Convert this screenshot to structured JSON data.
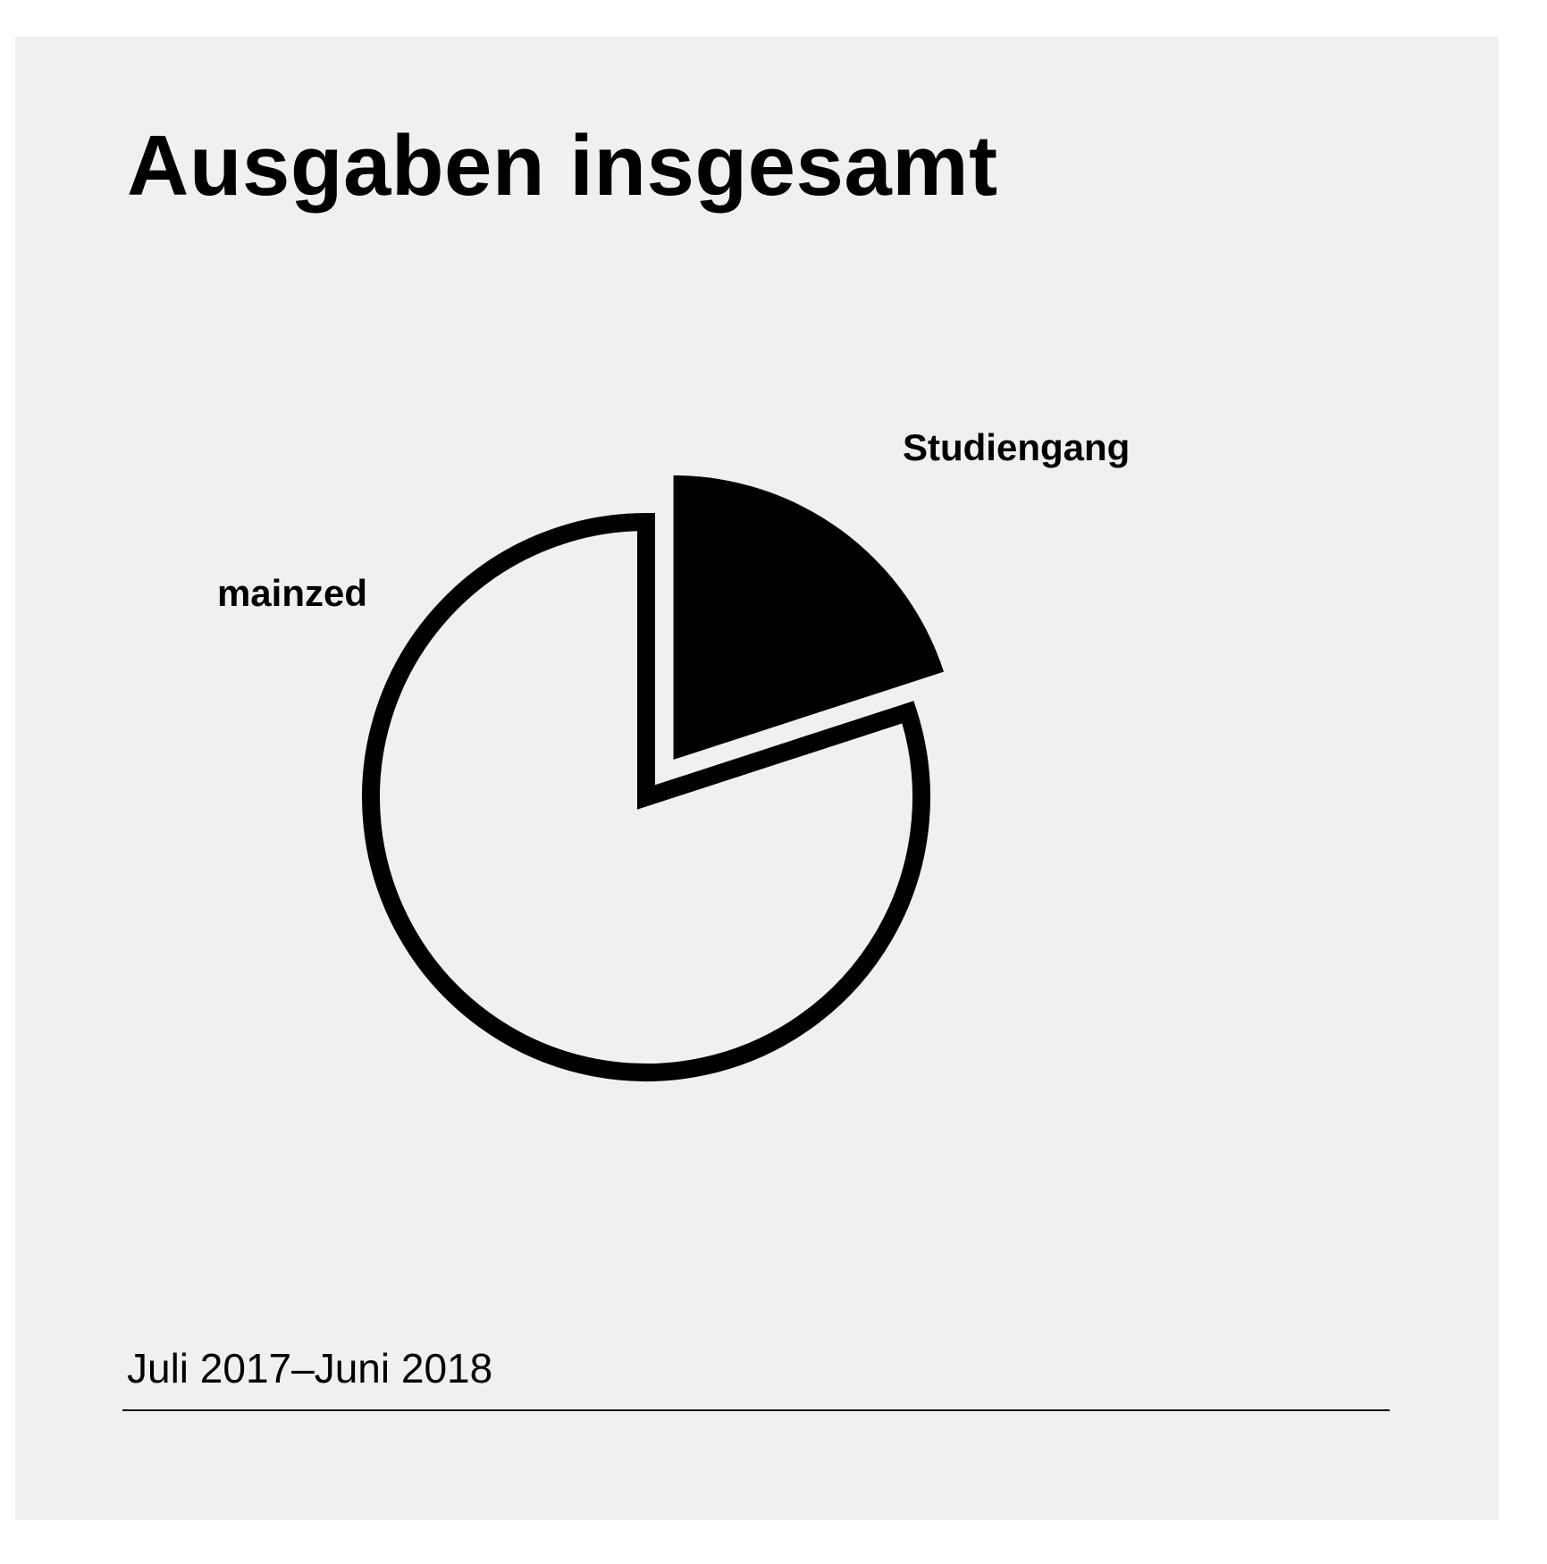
{
  "title": "Ausgaben insgesamt",
  "period": "Juli 2017–Juni 2018",
  "colors": {
    "background": "#f0f1ef",
    "ink": "#000000"
  },
  "chart_data": {
    "type": "pie",
    "title": "Ausgaben insgesamt",
    "subtitle": "Juli 2017–Juni 2018",
    "categories": [
      "Studiengang",
      "mainzed"
    ],
    "values": [
      20,
      80
    ],
    "unit": "percent",
    "colors": [
      "#000000",
      "#f0f1ef"
    ],
    "styles": [
      "filled",
      "outlined"
    ],
    "exploded": [
      "Studiengang"
    ],
    "start_angle_deg": 0,
    "direction": "clockwise",
    "legend": "none (direct labels)"
  }
}
